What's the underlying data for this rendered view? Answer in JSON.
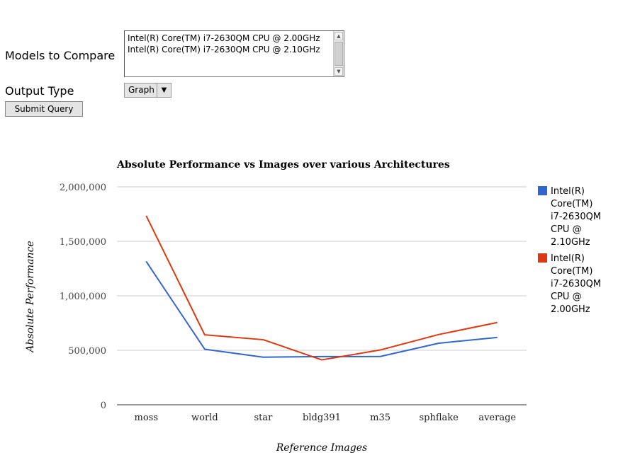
{
  "form": {
    "models_label": "Models to Compare",
    "models_options": [
      "Intel(R) Core(TM) i7-2630QM CPU @ 2.00GHz",
      "Intel(R) Core(TM) i7-2630QM CPU @ 2.10GHz"
    ],
    "output_label": "Output Type",
    "output_value": "Graph",
    "submit_label": "Submit Query"
  },
  "chart_data": {
    "type": "line",
    "title": "Absolute Performance vs Images over various Architectures",
    "xlabel": "Reference Images",
    "ylabel": "Absolute Performance",
    "categories": [
      "moss",
      "world",
      "star",
      "bldg391",
      "m35",
      "sphflake",
      "average"
    ],
    "ylim": [
      0,
      2000000
    ],
    "yticks": [
      0,
      500000,
      1000000,
      1500000,
      2000000
    ],
    "ytick_labels": [
      "0",
      "500,000",
      "1,000,000",
      "1,500,000",
      "2,000,000"
    ],
    "grid": true,
    "legend_position": "right",
    "series": [
      {
        "name": "Intel(R) Core(TM) i7-2630QM CPU @ 2.10GHz",
        "legend_lines": [
          "Intel(R)",
          "Core(TM)",
          "i7-2630QM",
          "CPU @",
          "2.10GHz"
        ],
        "color": "#3366cc",
        "values": [
          1315000,
          510000,
          437000,
          442000,
          443000,
          565000,
          618000
        ]
      },
      {
        "name": "Intel(R) Core(TM) i7-2630QM CPU @ 2.00GHz",
        "legend_lines": [
          "Intel(R)",
          "Core(TM)",
          "i7-2630QM",
          "CPU @",
          "2.00GHz"
        ],
        "color": "#dc3912",
        "values": [
          1735000,
          642000,
          597000,
          412000,
          503000,
          645000,
          755000
        ]
      }
    ]
  }
}
